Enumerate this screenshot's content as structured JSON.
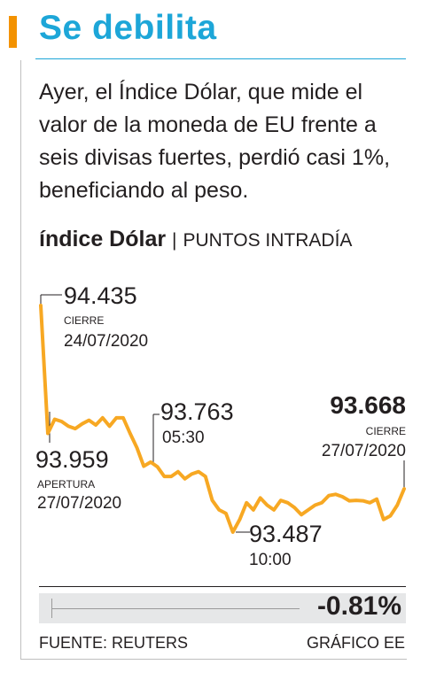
{
  "header": {
    "title": "Se debilita",
    "description": "Ayer, el Índice Dólar, que mide el valor de la moneda de EU frente a seis divisas fuertes, perdió casi 1%, beneficiando al peso."
  },
  "chart_header": {
    "title_bold": "índice Dólar",
    "separator": "|",
    "subtitle": "PUNTOS INTRADÍA"
  },
  "colors": {
    "accent_orange": "#f39200",
    "title_blue": "#1da6d8",
    "line": "#f7a823",
    "text": "#231f20",
    "band": "#e6e7e8"
  },
  "chart_data": {
    "type": "line",
    "title": "índice Dólar",
    "subtitle": "PUNTOS INTRADÍA",
    "ylim": [
      93.4,
      94.5
    ],
    "values": [
      94.435,
      93.9,
      93.959,
      93.95,
      93.93,
      93.92,
      93.94,
      93.955,
      93.935,
      93.965,
      93.93,
      93.965,
      93.965,
      93.9,
      93.84,
      93.763,
      93.78,
      93.76,
      93.72,
      93.72,
      93.74,
      93.71,
      93.73,
      93.74,
      93.72,
      93.62,
      93.58,
      93.565,
      93.487,
      93.54,
      93.61,
      93.58,
      93.63,
      93.6,
      93.58,
      93.62,
      93.61,
      93.59,
      93.56,
      93.58,
      93.6,
      93.61,
      93.64,
      93.645,
      93.635,
      93.618,
      93.62,
      93.618,
      93.61,
      93.625,
      93.54,
      93.555,
      93.6,
      93.668
    ],
    "annotations": [
      {
        "id": "high",
        "value": "94.435",
        "label": "CIERRE",
        "date": "24/07/2020"
      },
      {
        "id": "open",
        "value": "93.959",
        "label": "APERTURA",
        "date": "27/07/2020"
      },
      {
        "id": "mid",
        "value": "93.763",
        "time": "05:30"
      },
      {
        "id": "low",
        "value": "93.487",
        "time": "10:00"
      },
      {
        "id": "close",
        "value": "93.668",
        "label": "CIERRE",
        "date": "27/07/2020"
      }
    ],
    "change": "-0.81%"
  },
  "footer": {
    "source": "FUENTE: REUTERS",
    "credit": "GRÁFICO EE"
  }
}
